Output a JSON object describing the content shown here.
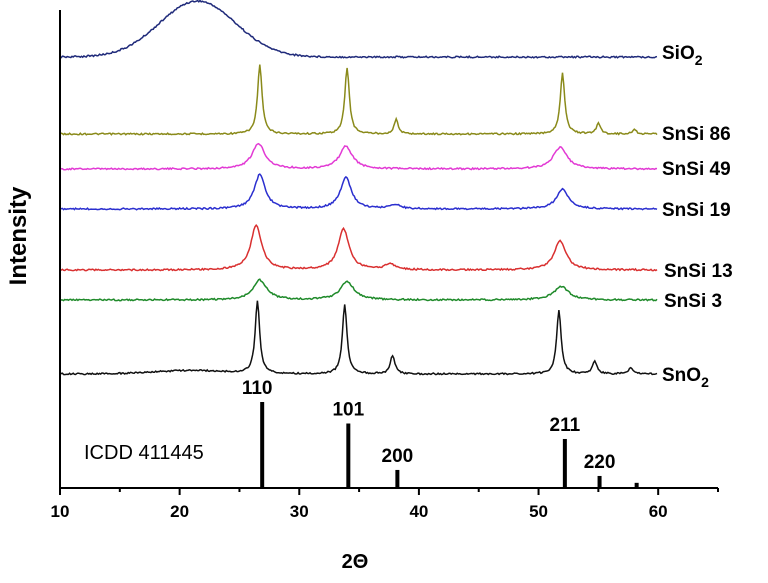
{
  "chart_data": {
    "type": "line",
    "xlabel": "2Θ",
    "ylabel": "Intensity",
    "xlim": [
      10,
      65
    ],
    "x_ticks": [
      10,
      20,
      30,
      40,
      50,
      60
    ],
    "grid": false,
    "legend": "series labels at right end of each curve",
    "series": [
      {
        "name": "SiO2",
        "name_main": "SiO",
        "name_sub": "2",
        "color": "#1f2a7a",
        "baseline": 1.0,
        "amorphous": {
          "center": 21.5,
          "width": 4.5,
          "height": 0.35
        },
        "peaks": []
      },
      {
        "name": "SnSi 86",
        "color": "#8a8a1a",
        "baseline": 0.0,
        "peaks": [
          {
            "x": 26.7,
            "h": 0.75,
            "w": 0.45
          },
          {
            "x": 34.0,
            "h": 0.72,
            "w": 0.45
          },
          {
            "x": 38.1,
            "h": 0.16,
            "w": 0.4
          },
          {
            "x": 52.0,
            "h": 0.66,
            "w": 0.45
          },
          {
            "x": 55.0,
            "h": 0.12,
            "w": 0.4
          },
          {
            "x": 58.0,
            "h": 0.05,
            "w": 0.4
          }
        ]
      },
      {
        "name": "SnSi 49",
        "color": "#e23ad4",
        "baseline": 0.0,
        "peaks": [
          {
            "x": 26.6,
            "h": 0.28,
            "w": 1.3
          },
          {
            "x": 33.9,
            "h": 0.25,
            "w": 1.3
          },
          {
            "x": 51.8,
            "h": 0.24,
            "w": 1.4
          }
        ]
      },
      {
        "name": "SnSi 19",
        "color": "#2b2fcf",
        "baseline": 0.0,
        "peaks": [
          {
            "x": 26.7,
            "h": 0.38,
            "w": 1.1
          },
          {
            "x": 33.9,
            "h": 0.35,
            "w": 1.1
          },
          {
            "x": 38.0,
            "h": 0.05,
            "w": 1.0
          },
          {
            "x": 52.0,
            "h": 0.22,
            "w": 1.2
          }
        ]
      },
      {
        "name": "SnSi 13",
        "color": "#d93030",
        "baseline": 0.0,
        "peaks": [
          {
            "x": 26.4,
            "h": 0.52,
            "w": 1.1
          },
          {
            "x": 33.7,
            "h": 0.48,
            "w": 1.1
          },
          {
            "x": 37.6,
            "h": 0.07,
            "w": 1.0
          },
          {
            "x": 51.8,
            "h": 0.34,
            "w": 1.2
          }
        ]
      },
      {
        "name": "SnSi 3",
        "color": "#1f8a2a",
        "baseline": 0.0,
        "peaks": [
          {
            "x": 26.7,
            "h": 0.22,
            "w": 1.4
          },
          {
            "x": 34.0,
            "h": 0.2,
            "w": 1.4
          },
          {
            "x": 51.9,
            "h": 0.15,
            "w": 1.5
          }
        ]
      },
      {
        "name": "SnO2",
        "name_main": "SnO",
        "name_sub": "2",
        "color": "#111111",
        "baseline": 0.0,
        "amorphous": {
          "center": 21.0,
          "width": 4.5,
          "height": 0.04
        },
        "peaks": [
          {
            "x": 26.5,
            "h": 0.85,
            "w": 0.45
          },
          {
            "x": 33.8,
            "h": 0.82,
            "w": 0.45
          },
          {
            "x": 37.8,
            "h": 0.22,
            "w": 0.45
          },
          {
            "x": 51.7,
            "h": 0.75,
            "w": 0.45
          },
          {
            "x": 54.7,
            "h": 0.15,
            "w": 0.45
          },
          {
            "x": 57.7,
            "h": 0.07,
            "w": 0.45
          }
        ]
      }
    ],
    "reference": {
      "title": "ICDD 411445",
      "lines": [
        {
          "x": 26.9,
          "intensity": 100,
          "label": "110"
        },
        {
          "x": 34.1,
          "intensity": 75,
          "label": "101"
        },
        {
          "x": 38.2,
          "intensity": 21,
          "label": "200"
        },
        {
          "x": 52.2,
          "intensity": 57,
          "label": "211"
        },
        {
          "x": 55.1,
          "intensity": 14,
          "label": "220"
        },
        {
          "x": 58.2,
          "intensity": 6,
          "label": ""
        }
      ]
    }
  }
}
